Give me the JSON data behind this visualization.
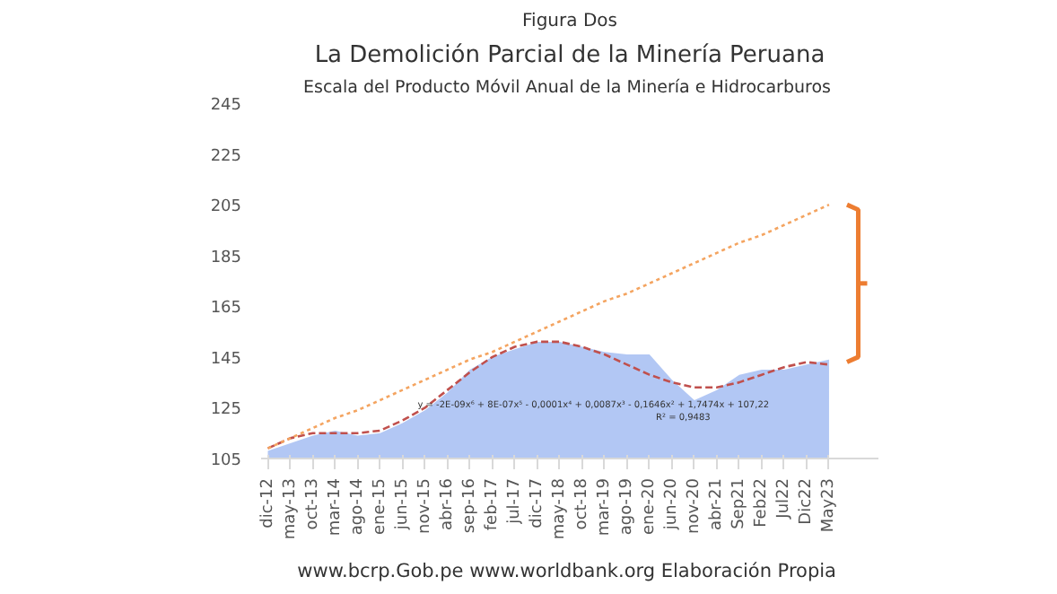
{
  "chart_data": {
    "type": "area",
    "title": "La Demolición Parcial de la Minería Peruana",
    "subtitle": "Escala del Producto Móvil Anual de la  Minería e Hidrocarburos",
    "categories": [
      "dic-12",
      "may-13",
      "oct-13",
      "mar-14",
      "ago-14",
      "ene-15",
      "jun-15",
      "nov-15",
      "abr-16",
      "sep-16",
      "feb-17",
      "jul-17",
      "dic-17",
      "may-18",
      "oct-18",
      "mar-19",
      "ago-19",
      "ene-20",
      "jun-20",
      "nov-20",
      "abr-21",
      "Sep21",
      "Feb22",
      "Jul22",
      "Dic22",
      "May23"
    ],
    "series": [
      {
        "color": "#a4bdf2",
        "values": [
          108,
          111,
          114,
          116,
          114,
          115,
          119,
          124,
          131,
          140,
          145,
          148,
          151,
          151,
          149,
          147,
          146,
          146,
          136,
          128,
          132,
          138,
          140,
          140,
          142,
          144
        ]
      },
      {
        "type": "line",
        "color": "#c0504d",
        "line_style": "dashed",
        "values": [
          109,
          113,
          115,
          115,
          115,
          116,
          120,
          125,
          132,
          139,
          145,
          149,
          151,
          151,
          149,
          146,
          142,
          138,
          135,
          133,
          133,
          135,
          138,
          141,
          143,
          142
        ]
      },
      {
        "type": "line",
        "color": "#f4a460",
        "line_style": "dotted",
        "values": [
          109,
          113,
          117,
          121,
          124,
          128,
          132,
          136,
          140,
          144,
          147,
          151,
          155,
          159,
          163,
          167,
          170,
          174,
          178,
          182,
          186,
          190,
          193,
          197,
          201,
          205
        ]
      }
    ],
    "ylim": [
      105,
      245
    ],
    "yticks": [
      105,
      125,
      145,
      165,
      185,
      205,
      225,
      245
    ],
    "grid": false,
    "annotations": [
      "Figura Dos",
      "y = -2E-09x⁶ + 8E-07x⁵ - 0,0001x⁴ + 0,0087x³ - 0,1646x² + 1,7474x + 107,22",
      "R² = 0,9483",
      "www.bcrp.Gob.pe www.worldbank.org  Elaboración Propia"
    ]
  }
}
